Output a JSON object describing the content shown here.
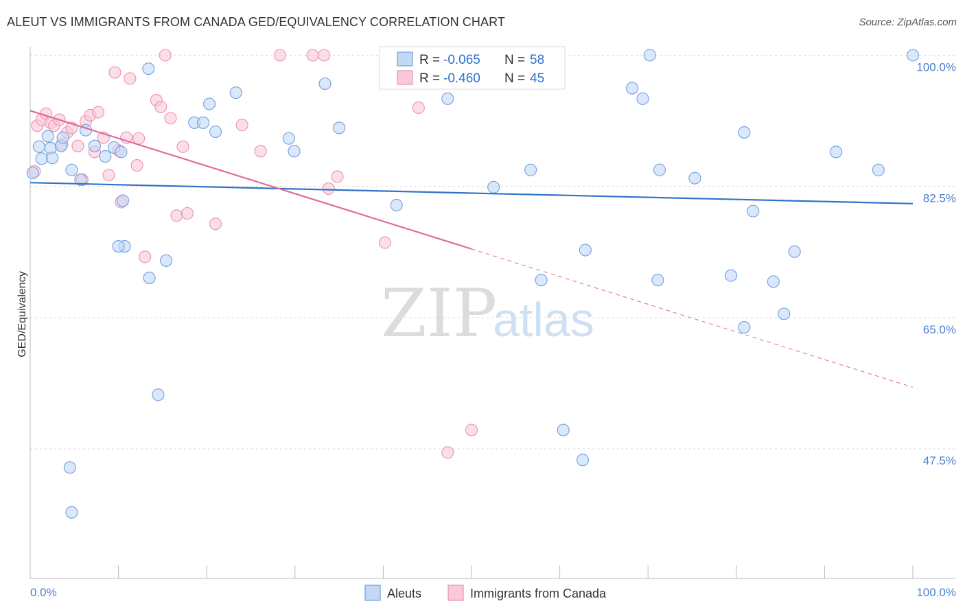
{
  "title": "ALEUT VS IMMIGRANTS FROM CANADA GED/EQUIVALENCY CORRELATION CHART",
  "source": "Source: ZipAtlas.com",
  "watermark": {
    "zip": "ZIP",
    "atlas": "atlas"
  },
  "colors": {
    "blue": "#6f9fe0",
    "blue_fill": "#c3d8f5",
    "blue_line": "#2f72c9",
    "pink": "#ee8fb0",
    "pink_fill": "#f8c9d9",
    "pink_line": "#e06a98"
  },
  "legend": {
    "row1": {
      "r_label": "R = ",
      "r_value": "-0.065",
      "n_label": "N = ",
      "n_value": "58"
    },
    "row2": {
      "r_label": "R = ",
      "r_value": "-0.460",
      "n_label": "N = ",
      "n_value": "45"
    }
  },
  "chart_data": {
    "type": "scatter",
    "xlabel": "",
    "ylabel": "GED/Equivalency",
    "x_ticks": [
      "0.0%",
      "100.0%"
    ],
    "y_ticks": [
      "100.0%",
      "82.5%",
      "65.0%",
      "47.5%"
    ],
    "xlim": [
      0,
      100
    ],
    "ylim": [
      32,
      102
    ],
    "grid": true,
    "legend_placement": "top-center",
    "series": [
      {
        "name": "Aleuts",
        "trend": {
          "x0": 0,
          "y0": 83.0,
          "x1": 100,
          "y1": 80.2
        },
        "points": [
          [
            0.3,
            84.3
          ],
          [
            1,
            87.8
          ],
          [
            1.3,
            86.2
          ],
          [
            2,
            89.2
          ],
          [
            2.3,
            87.6
          ],
          [
            2.5,
            86.3
          ],
          [
            3.5,
            87.9
          ],
          [
            3.7,
            89.0
          ],
          [
            4.7,
            84.7
          ],
          [
            5.7,
            83.4
          ],
          [
            6.3,
            90.0
          ],
          [
            7.3,
            87.9
          ],
          [
            8.5,
            86.5
          ],
          [
            9.5,
            87.7
          ],
          [
            10.3,
            87.1
          ],
          [
            10.5,
            80.6
          ],
          [
            10.7,
            74.5
          ],
          [
            13.4,
            98.2
          ],
          [
            13.5,
            70.3
          ],
          [
            14.5,
            54.7
          ],
          [
            15.4,
            72.6
          ],
          [
            18.6,
            91.0
          ],
          [
            19.6,
            91.0
          ],
          [
            20.3,
            93.5
          ],
          [
            21,
            89.8
          ],
          [
            23.3,
            95.0
          ],
          [
            29.3,
            88.9
          ],
          [
            29.9,
            87.2
          ],
          [
            33.4,
            96.2
          ],
          [
            35,
            90.3
          ],
          [
            41.5,
            80.0
          ],
          [
            47.3,
            94.2
          ],
          [
            52.5,
            82.4
          ],
          [
            55.8,
            100.0
          ],
          [
            56.7,
            84.7
          ],
          [
            57.9,
            70.0
          ],
          [
            60.4,
            50.0
          ],
          [
            62.6,
            46.0
          ],
          [
            62.9,
            74.0
          ],
          [
            68.2,
            95.6
          ],
          [
            69.4,
            94.2
          ],
          [
            70.2,
            100.0
          ],
          [
            71.1,
            70.0
          ],
          [
            71.3,
            84.7
          ],
          [
            75.3,
            83.6
          ],
          [
            79.4,
            70.6
          ],
          [
            80.9,
            63.7
          ],
          [
            80.9,
            89.7
          ],
          [
            81.9,
            79.2
          ],
          [
            84.2,
            69.8
          ],
          [
            85.4,
            65.5
          ],
          [
            86.6,
            73.8
          ],
          [
            91.3,
            87.1
          ],
          [
            96.1,
            84.7
          ],
          [
            100,
            100.0
          ],
          [
            4.5,
            45.0
          ],
          [
            4.7,
            39.0
          ],
          [
            10.0,
            74.5
          ]
        ]
      },
      {
        "name": "Immigrants from Canada",
        "trend": {
          "x0": 0,
          "y0": 92.6,
          "x1": 100,
          "y1": 55.7,
          "solid_until": 50
        },
        "points": [
          [
            0.5,
            84.5
          ],
          [
            0.8,
            90.6
          ],
          [
            1.3,
            91.4
          ],
          [
            1.8,
            92.2
          ],
          [
            2.3,
            91.0
          ],
          [
            2.7,
            90.6
          ],
          [
            3.3,
            91.4
          ],
          [
            3.6,
            88.1
          ],
          [
            4.2,
            89.7
          ],
          [
            4.7,
            90.3
          ],
          [
            5.4,
            87.9
          ],
          [
            5.9,
            83.4
          ],
          [
            6.3,
            91.2
          ],
          [
            6.8,
            92.0
          ],
          [
            7.3,
            87.1
          ],
          [
            7.7,
            92.4
          ],
          [
            8.3,
            89.0
          ],
          [
            8.9,
            84.0
          ],
          [
            9.6,
            97.7
          ],
          [
            10,
            87.3
          ],
          [
            10.3,
            80.4
          ],
          [
            10.9,
            89.0
          ],
          [
            11.3,
            96.9
          ],
          [
            12.1,
            85.3
          ],
          [
            12.3,
            88.9
          ],
          [
            13,
            73.1
          ],
          [
            14.3,
            94.0
          ],
          [
            14.8,
            93.1
          ],
          [
            15.3,
            100.0
          ],
          [
            15.9,
            91.6
          ],
          [
            16.6,
            78.6
          ],
          [
            17.3,
            87.8
          ],
          [
            17.8,
            78.9
          ],
          [
            21,
            77.5
          ],
          [
            24,
            90.7
          ],
          [
            26.1,
            87.2
          ],
          [
            28.3,
            100.0
          ],
          [
            32,
            100.0
          ],
          [
            33.3,
            100.0
          ],
          [
            33.8,
            82.2
          ],
          [
            34.8,
            83.8
          ],
          [
            40.2,
            75.0
          ],
          [
            44,
            93.0
          ],
          [
            47.3,
            47.0
          ],
          [
            50,
            50.0
          ]
        ]
      }
    ]
  },
  "bottom_legend": {
    "aleuts": "Aleuts",
    "canada": "Immigrants from Canada"
  }
}
